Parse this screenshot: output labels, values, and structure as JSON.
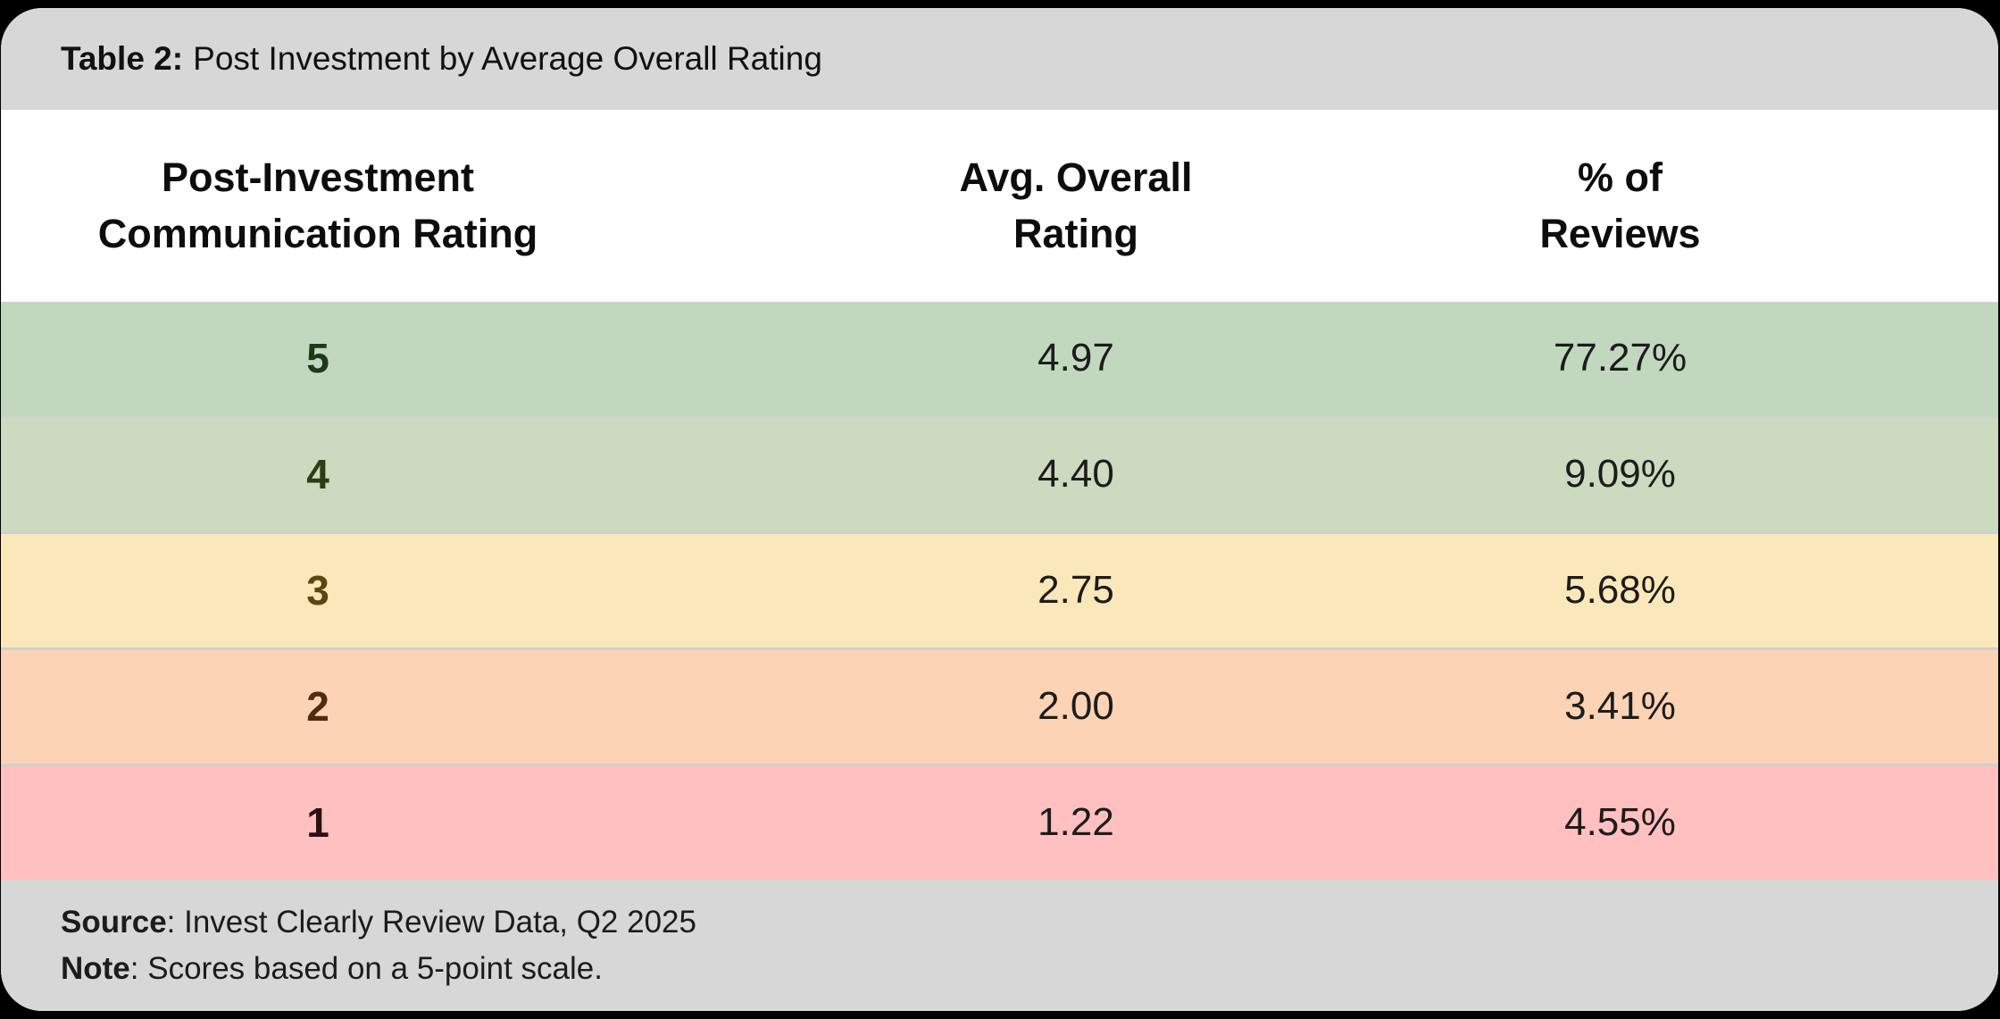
{
  "title": {
    "prefix": "Table 2:",
    "text": "Post Investment by Average Overall Rating"
  },
  "table": {
    "columns": [
      {
        "lines": [
          "Post-Investment",
          "Communication Rating"
        ]
      },
      {
        "lines": [
          "Avg. Overall",
          "Rating"
        ]
      },
      {
        "lines": [
          "% of",
          "Reviews"
        ]
      }
    ],
    "rows": [
      {
        "rating": "5",
        "avg": "4.97",
        "pct": "77.27%",
        "bg": "#c1d8bf",
        "rating_color": "#1d3a15"
      },
      {
        "rating": "4",
        "avg": "4.40",
        "pct": "9.09%",
        "bg": "#ccdabf",
        "rating_color": "#2f3b12"
      },
      {
        "rating": "3",
        "avg": "2.75",
        "pct": "5.68%",
        "bg": "#fbe8ba",
        "rating_color": "#5a470f"
      },
      {
        "rating": "2",
        "avg": "2.00",
        "pct": "3.41%",
        "bg": "#fcd3b5",
        "rating_color": "#4f2b10"
      },
      {
        "rating": "1",
        "avg": "1.22",
        "pct": "4.55%",
        "bg": "#ffc0bf",
        "rating_color": "#2a1013"
      }
    ]
  },
  "footer": {
    "source_label": "Source",
    "source_text": ": Invest Clearly Review Data, Q2 2025",
    "note_label": "Note",
    "note_text": ": Scores based on a 5-point scale."
  },
  "colors": {
    "band_gray": "#d7d7d7",
    "separator": "#d0d0d0",
    "page_background": "#000000",
    "header_background": "#ffffff",
    "value_text": "#1c1c1c"
  },
  "chart_data": {
    "type": "table",
    "title": "Table 2: Post Investment by Average Overall Rating",
    "columns": [
      "Post-Investment Communication Rating",
      "Avg. Overall Rating",
      "% of Reviews"
    ],
    "rows": [
      [
        "5",
        4.97,
        "77.27%"
      ],
      [
        "4",
        4.4,
        "9.09%"
      ],
      [
        "3",
        2.75,
        "5.68%"
      ],
      [
        "2",
        2.0,
        "3.41%"
      ],
      [
        "1",
        1.22,
        "4.55%"
      ]
    ],
    "source": "Invest Clearly Review Data, Q2 2025",
    "note": "Scores based on a 5-point scale.",
    "row_color_scale": [
      "#c1d8bf",
      "#ccdabf",
      "#fbe8ba",
      "#fcd3b5",
      "#ffc0bf"
    ]
  }
}
